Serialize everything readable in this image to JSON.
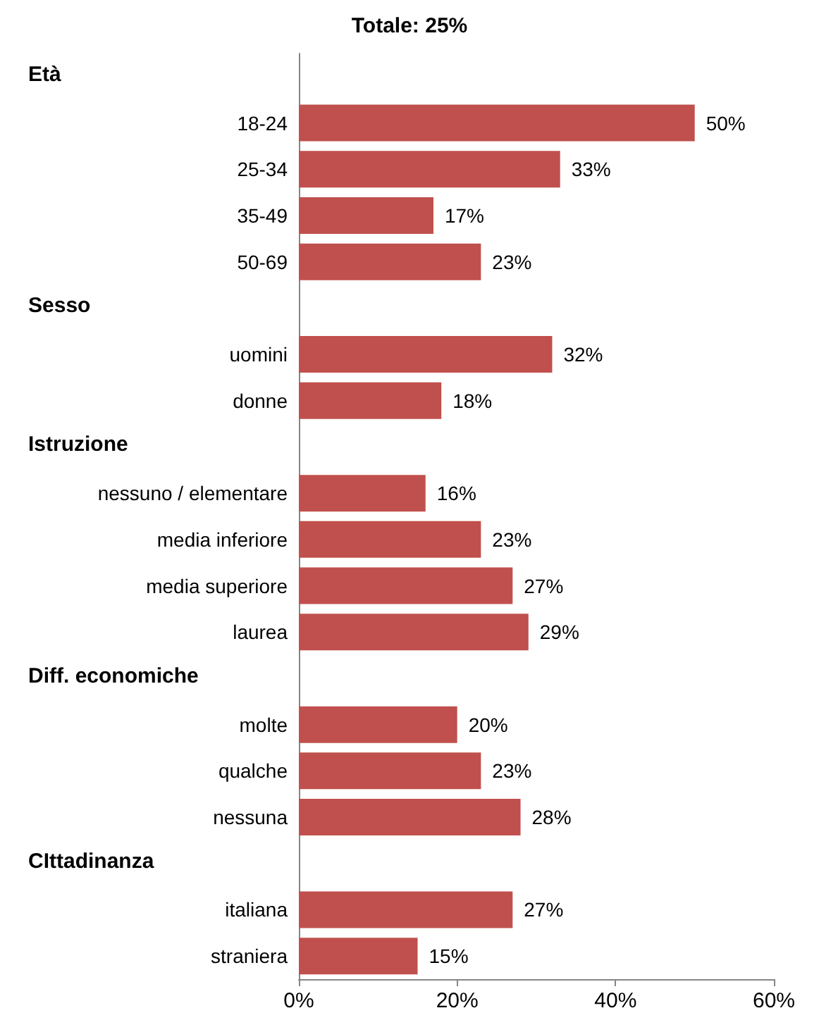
{
  "chart_data": {
    "type": "bar",
    "orientation": "horizontal",
    "title": "Totale: 25%",
    "categories": [
      null,
      "18-24",
      "25-34",
      "35-49",
      "50-69",
      null,
      "uomini",
      "donne",
      null,
      "nessuno / elementare",
      "media inferiore",
      "media superiore",
      "laurea",
      null,
      "molte",
      "qualche",
      "nessuna",
      null,
      "italiana",
      "straniera"
    ],
    "values": [
      null,
      50,
      33,
      17,
      23,
      null,
      32,
      18,
      null,
      16,
      23,
      27,
      29,
      null,
      20,
      23,
      28,
      null,
      27,
      15
    ],
    "value_labels": [
      null,
      "50%",
      "33%",
      "17%",
      "23%",
      null,
      "32%",
      "18%",
      null,
      "16%",
      "23%",
      "27%",
      "29%",
      null,
      "20%",
      "23%",
      "28%",
      null,
      "27%",
      "15%"
    ],
    "annotations": [
      "Età",
      "Sesso",
      "Istruzione",
      "Diff. economiche",
      "CIttadinanza"
    ],
    "color": "#c0504d",
    "xlim": [
      0,
      60
    ],
    "xticks": [
      {
        "value": 0,
        "label": "0%"
      },
      {
        "value": 20,
        "label": "20%"
      },
      {
        "value": 40,
        "label": "40%"
      },
      {
        "value": 60,
        "label": "60%"
      }
    ],
    "grid": false
  }
}
